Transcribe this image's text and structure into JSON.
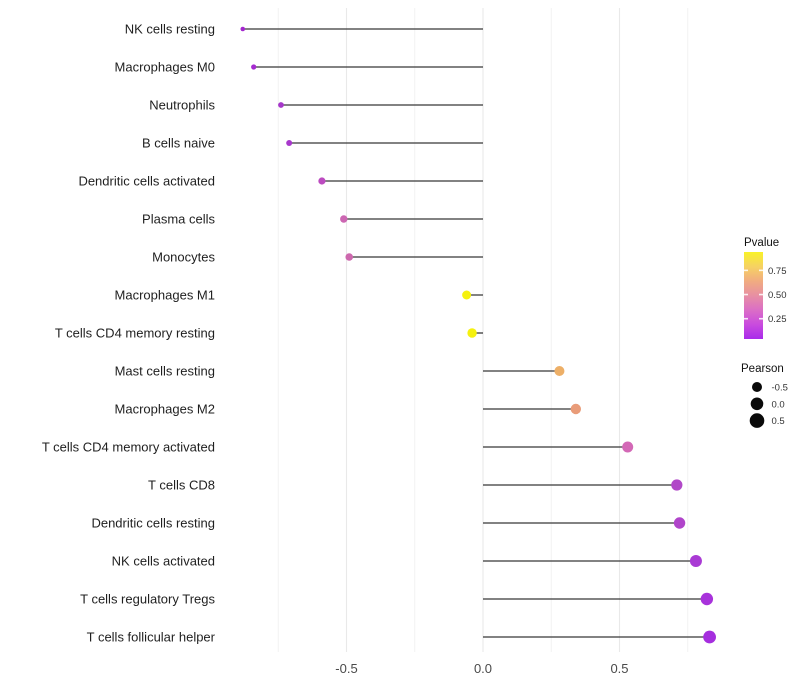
{
  "figure": {
    "background": "#FFFFFF",
    "stem_color": "#383838"
  },
  "chart_data": {
    "type": "scatter",
    "variant": "lollipop",
    "orientation": "horizontal",
    "title": "",
    "xlabel": "",
    "ylabel": "",
    "grid": true,
    "xlim": [
      -0.93,
      0.92
    ],
    "x_tick_labels": [
      "-0.5",
      "0.0",
      "0.5"
    ],
    "x_tick_values": [
      -0.5,
      0.0,
      0.5
    ],
    "x_minor_gridlines": [
      -0.75,
      -0.25,
      0.25,
      0.75
    ],
    "rows": [
      {
        "label": "NK cells resting",
        "pearson": -0.88,
        "color": "#A327CE",
        "dot_radius": 2.3
      },
      {
        "label": "Macrophages M0",
        "pearson": -0.84,
        "color": "#A52BCF",
        "dot_radius": 2.6
      },
      {
        "label": "Neutrophils",
        "pearson": -0.74,
        "color": "#A637CA",
        "dot_radius": 2.9
      },
      {
        "label": "B cells naive",
        "pearson": -0.71,
        "color": "#A838CC",
        "dot_radius": 3.0
      },
      {
        "label": "Dendritic cells activated",
        "pearson": -0.59,
        "color": "#BC4BC0",
        "dot_radius": 3.6
      },
      {
        "label": "Plasma cells",
        "pearson": -0.51,
        "color": "#CC66B2",
        "dot_radius": 3.7
      },
      {
        "label": "Monocytes",
        "pearson": -0.49,
        "color": "#CD68AE",
        "dot_radius": 3.8
      },
      {
        "label": "Macrophages M1",
        "pearson": -0.06,
        "color": "#F5F10E",
        "dot_radius": 4.5
      },
      {
        "label": "T cells CD4 memory resting",
        "pearson": -0.04,
        "color": "#F5F10E",
        "dot_radius": 4.7
      },
      {
        "label": "Mast cells resting",
        "pearson": 0.28,
        "color": "#EDAF67",
        "dot_radius": 5.0
      },
      {
        "label": "Macrophages M2",
        "pearson": 0.34,
        "color": "#E99C79",
        "dot_radius": 5.2
      },
      {
        "label": "T cells CD4 memory activated",
        "pearson": 0.53,
        "color": "#D368B6",
        "dot_radius": 5.5
      },
      {
        "label": "T cells CD8",
        "pearson": 0.71,
        "color": "#B148C8",
        "dot_radius": 5.6
      },
      {
        "label": "Dendritic cells resting",
        "pearson": 0.72,
        "color": "#B044CA",
        "dot_radius": 5.7
      },
      {
        "label": "NK cells activated",
        "pearson": 0.78,
        "color": "#A93AD4",
        "dot_radius": 6.0
      },
      {
        "label": "T cells regulatory  Tregs",
        "pearson": 0.82,
        "color": "#A832DB",
        "dot_radius": 6.2
      },
      {
        "label": "T cells follicular helper",
        "pearson": 0.83,
        "color": "#A52EDE",
        "dot_radius": 6.4
      }
    ],
    "legend_position": "right",
    "legends": {
      "pvalue": {
        "title": "Pvalue",
        "gradient_top_to_bottom": [
          "#F8F228",
          "#F6D263",
          "#F1AC80",
          "#E78FA3",
          "#DB6EC6",
          "#C94BDE",
          "#A92BEA"
        ],
        "ticks": [
          {
            "label": "0.75",
            "value": 0.75
          },
          {
            "label": "0.50",
            "value": 0.5
          },
          {
            "label": "0.25",
            "value": 0.25
          }
        ]
      },
      "pearson": {
        "title": "Pearson",
        "dot_color": "#0A0A0A",
        "items": [
          {
            "label": "-0.5",
            "radius": 5.0
          },
          {
            "label": "0.0",
            "radius": 6.3
          },
          {
            "label": "0.5",
            "radius": 7.3
          }
        ]
      }
    }
  }
}
